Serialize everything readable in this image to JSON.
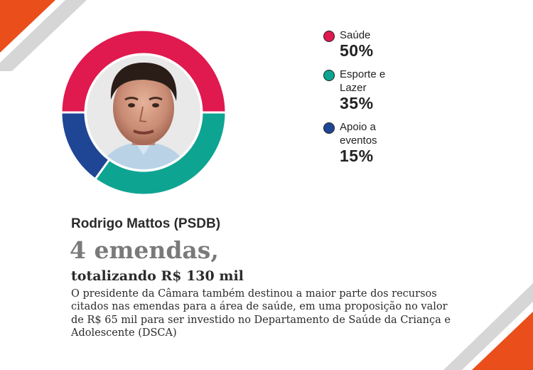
{
  "colors": {
    "saude": "#e0194f",
    "esporte": "#0ea492",
    "apoio": "#1f4595",
    "corner_orange": "#ea4e1b",
    "stripe_gray": "#d6d6d6"
  },
  "chart_data": {
    "type": "pie",
    "donut": true,
    "title": "",
    "categories": [
      "Saúde",
      "Esporte e Lazer",
      "Apoio a eventos"
    ],
    "values": [
      50,
      35,
      15
    ],
    "unit": "%",
    "legend_position": "right"
  },
  "legend": [
    {
      "label": "Saúde",
      "value": "50%",
      "color_key": "saude"
    },
    {
      "label": "Esporte e Lazer",
      "value": "35%",
      "color_key": "esporte"
    },
    {
      "label": "Apoio a eventos",
      "value": "15%",
      "color_key": "apoio"
    }
  ],
  "profile": {
    "name": "Rodrigo Mattos (PSDB)",
    "headline": "4 emendas,",
    "subhead": "totalizando R$ 130 mil",
    "body": "O presidente da Câmara também destinou a maior parte dos recursos citados nas emendas para a área de saúde, em uma proposição no valor de R$ 65 mil para ser investido no Departamento de Saúde da Criança e Adolescente (DSCA)"
  }
}
